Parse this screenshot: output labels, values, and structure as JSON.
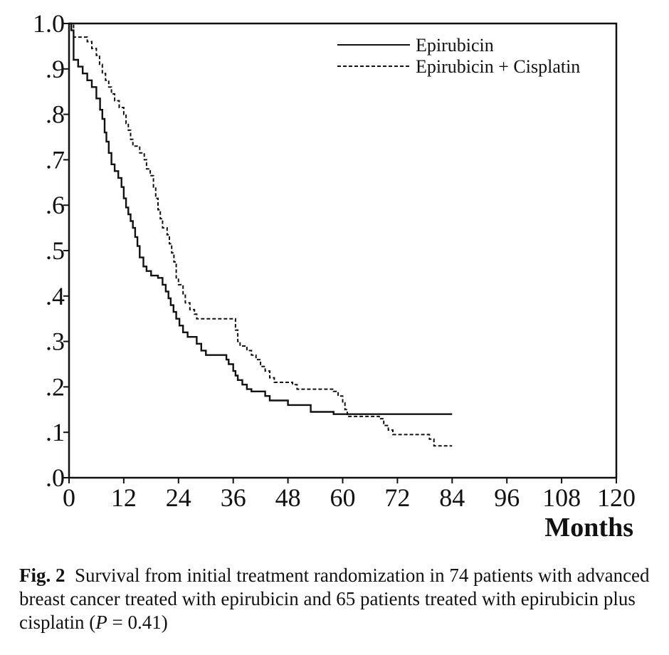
{
  "chart_data": {
    "type": "line",
    "title": "",
    "xlabel": "Months",
    "ylabel": "",
    "xlim": [
      0,
      120
    ],
    "ylim": [
      0,
      1
    ],
    "x_ticks": [
      0,
      12,
      24,
      36,
      48,
      60,
      72,
      84,
      96,
      108,
      120
    ],
    "x_tick_labels": [
      "0",
      "12",
      "24",
      "36",
      "48",
      "60",
      "72",
      "84",
      "96",
      "108",
      "120"
    ],
    "y_ticks": [
      0,
      0.1,
      0.2,
      0.3,
      0.4,
      0.5,
      0.6,
      0.7,
      0.8,
      0.9,
      1.0
    ],
    "y_tick_labels": [
      ".0",
      ".1",
      ".2",
      ".3",
      ".4",
      ".5",
      ".6",
      ".7",
      ".8",
      ".9",
      "1.0"
    ],
    "grid": false,
    "legend_position": "top-right",
    "series": [
      {
        "name": "Epirubicin",
        "line_style": "solid",
        "points": [
          [
            0,
            1.0
          ],
          [
            0.5,
            0.985
          ],
          [
            1,
            0.92
          ],
          [
            2,
            0.905
          ],
          [
            3,
            0.89
          ],
          [
            4,
            0.875
          ],
          [
            5,
            0.86
          ],
          [
            6,
            0.835
          ],
          [
            6.8,
            0.81
          ],
          [
            7.3,
            0.79
          ],
          [
            7.8,
            0.76
          ],
          [
            8.2,
            0.74
          ],
          [
            8.7,
            0.715
          ],
          [
            9.3,
            0.69
          ],
          [
            10,
            0.675
          ],
          [
            10.8,
            0.66
          ],
          [
            11.5,
            0.64
          ],
          [
            12,
            0.615
          ],
          [
            12.5,
            0.595
          ],
          [
            13,
            0.58
          ],
          [
            13.5,
            0.565
          ],
          [
            14,
            0.55
          ],
          [
            14.5,
            0.53
          ],
          [
            15,
            0.51
          ],
          [
            15.5,
            0.485
          ],
          [
            16.3,
            0.465
          ],
          [
            17,
            0.455
          ],
          [
            18,
            0.445
          ],
          [
            19.5,
            0.44
          ],
          [
            20.5,
            0.425
          ],
          [
            21.2,
            0.41
          ],
          [
            21.8,
            0.395
          ],
          [
            22.3,
            0.38
          ],
          [
            22.9,
            0.365
          ],
          [
            23.5,
            0.35
          ],
          [
            24.2,
            0.335
          ],
          [
            25,
            0.32
          ],
          [
            26,
            0.31
          ],
          [
            28,
            0.295
          ],
          [
            29,
            0.28
          ],
          [
            30,
            0.27
          ],
          [
            33,
            0.27
          ],
          [
            34.5,
            0.26
          ],
          [
            35,
            0.25
          ],
          [
            36,
            0.235
          ],
          [
            36.5,
            0.225
          ],
          [
            37,
            0.215
          ],
          [
            38,
            0.205
          ],
          [
            39,
            0.195
          ],
          [
            40,
            0.19
          ],
          [
            43,
            0.18
          ],
          [
            44,
            0.17
          ],
          [
            48,
            0.16
          ],
          [
            53,
            0.145
          ],
          [
            58,
            0.14
          ],
          [
            84,
            0.14
          ]
        ]
      },
      {
        "name": "Epirubicin + Cisplatin",
        "line_style": "dashed",
        "points": [
          [
            0,
            1.0
          ],
          [
            1,
            0.97
          ],
          [
            4,
            0.96
          ],
          [
            5,
            0.945
          ],
          [
            6,
            0.93
          ],
          [
            6.7,
            0.91
          ],
          [
            7.3,
            0.89
          ],
          [
            8,
            0.875
          ],
          [
            8.7,
            0.86
          ],
          [
            9.3,
            0.845
          ],
          [
            10,
            0.83
          ],
          [
            11,
            0.815
          ],
          [
            12,
            0.8
          ],
          [
            12.5,
            0.78
          ],
          [
            13,
            0.765
          ],
          [
            13.5,
            0.745
          ],
          [
            14,
            0.73
          ],
          [
            15.5,
            0.715
          ],
          [
            16.5,
            0.7
          ],
          [
            17,
            0.68
          ],
          [
            17.8,
            0.665
          ],
          [
            18.5,
            0.64
          ],
          [
            19,
            0.615
          ],
          [
            19.5,
            0.59
          ],
          [
            20,
            0.57
          ],
          [
            20.5,
            0.55
          ],
          [
            21.5,
            0.535
          ],
          [
            22,
            0.515
          ],
          [
            22.5,
            0.495
          ],
          [
            23,
            0.475
          ],
          [
            23.5,
            0.44
          ],
          [
            24,
            0.425
          ],
          [
            25,
            0.405
          ],
          [
            25.5,
            0.385
          ],
          [
            26.5,
            0.37
          ],
          [
            27.5,
            0.36
          ],
          [
            28,
            0.35
          ],
          [
            36,
            0.35
          ],
          [
            36.5,
            0.325
          ],
          [
            37,
            0.3
          ],
          [
            37.5,
            0.29
          ],
          [
            39,
            0.28
          ],
          [
            40,
            0.27
          ],
          [
            41,
            0.26
          ],
          [
            42,
            0.245
          ],
          [
            43,
            0.235
          ],
          [
            44,
            0.22
          ],
          [
            45,
            0.21
          ],
          [
            49,
            0.205
          ],
          [
            50,
            0.195
          ],
          [
            58,
            0.19
          ],
          [
            59,
            0.18
          ],
          [
            60,
            0.165
          ],
          [
            60.5,
            0.15
          ],
          [
            61,
            0.135
          ],
          [
            68,
            0.13
          ],
          [
            69,
            0.115
          ],
          [
            70,
            0.105
          ],
          [
            71,
            0.095
          ],
          [
            79,
            0.085
          ],
          [
            80,
            0.07
          ],
          [
            84,
            0.07
          ]
        ]
      }
    ]
  },
  "caption": {
    "fig_label": "Fig. 2",
    "text_before_p": "Survival from initial treatment randomization in 74 patients with advanced breast cancer treated with epirubicin and 65 patients treated with epirubicin plus cisplatin (",
    "p_symbol": "P",
    "text_after_p": " = 0.41)"
  }
}
